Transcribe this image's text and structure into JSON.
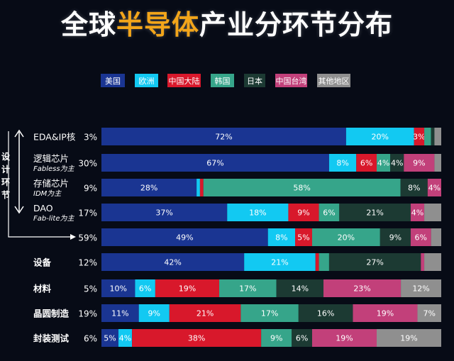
{
  "title": {
    "before": "全球",
    "highlight": "半导体",
    "after": "产业分环节分布"
  },
  "chart_data": {
    "type": "bar",
    "stacked": true,
    "horizontal": true,
    "xlim": [
      0,
      100
    ],
    "legend_position": "top",
    "colors": [
      "#1a3592",
      "#12c9f2",
      "#d8182b",
      "#36a58a",
      "#1c3a33",
      "#c2407a",
      "#8f8f8f"
    ],
    "legend": [
      "美国",
      "欧洲",
      "中国大陆",
      "韩国",
      "日本",
      "中国台湾",
      "其他地区"
    ],
    "group_label": "设计环节",
    "rows": [
      {
        "label": "EDA&IP核",
        "share": "3%",
        "values": [
          72,
          20,
          3,
          2,
          1,
          0,
          2
        ],
        "labels": [
          "72%",
          "20%",
          "3%",
          "",
          "",
          "",
          ""
        ]
      },
      {
        "label": "逻辑芯片",
        "sublabel": "Fabless为主",
        "share": "30%",
        "values": [
          67,
          8,
          6,
          4,
          4,
          9,
          2
        ],
        "labels": [
          "67%",
          "8%",
          "6%",
          "4%",
          "4%",
          "9%",
          ""
        ]
      },
      {
        "label": "存储芯片",
        "sublabel": "IDM为主",
        "share": "9%",
        "values": [
          28,
          1,
          1,
          58,
          8,
          4,
          0
        ],
        "labels": [
          "28%",
          "",
          "",
          "58%",
          "8%",
          "4%",
          ""
        ]
      },
      {
        "label": "DAO",
        "sublabel": "Fab-lite为主",
        "share": "17%",
        "values": [
          37,
          18,
          9,
          6,
          21,
          4,
          5
        ],
        "labels": [
          "37%",
          "18%",
          "9%",
          "6%",
          "21%",
          "4%",
          ""
        ]
      },
      {
        "label": "",
        "share": "59%",
        "values": [
          49,
          8,
          5,
          20,
          9,
          6,
          3
        ],
        "labels": [
          "49%",
          "8%",
          "5%",
          "20%",
          "9%",
          "6%",
          ""
        ]
      },
      {
        "label": "设备",
        "share": "12%",
        "values": [
          42,
          21,
          1,
          3,
          27,
          1,
          5
        ],
        "labels": [
          "42%",
          "21%",
          "",
          "",
          "27%",
          "",
          ""
        ]
      },
      {
        "label": "材料",
        "share": "5%",
        "values": [
          10,
          6,
          19,
          17,
          14,
          23,
          12
        ],
        "labels": [
          "10%",
          "6%",
          "19%",
          "17%",
          "14%",
          "23%",
          "12%"
        ]
      },
      {
        "label": "晶圆制造",
        "share": "19%",
        "values": [
          11,
          9,
          21,
          17,
          16,
          19,
          7
        ],
        "labels": [
          "11%",
          "9%",
          "21%",
          "17%",
          "16%",
          "19%",
          "7%"
        ]
      },
      {
        "label": "封装测试",
        "share": "6%",
        "values": [
          5,
          4,
          38,
          9,
          6,
          19,
          19
        ],
        "labels": [
          "5%",
          "4%",
          "38%",
          "9%",
          "6%",
          "19%",
          "19%"
        ]
      }
    ]
  }
}
